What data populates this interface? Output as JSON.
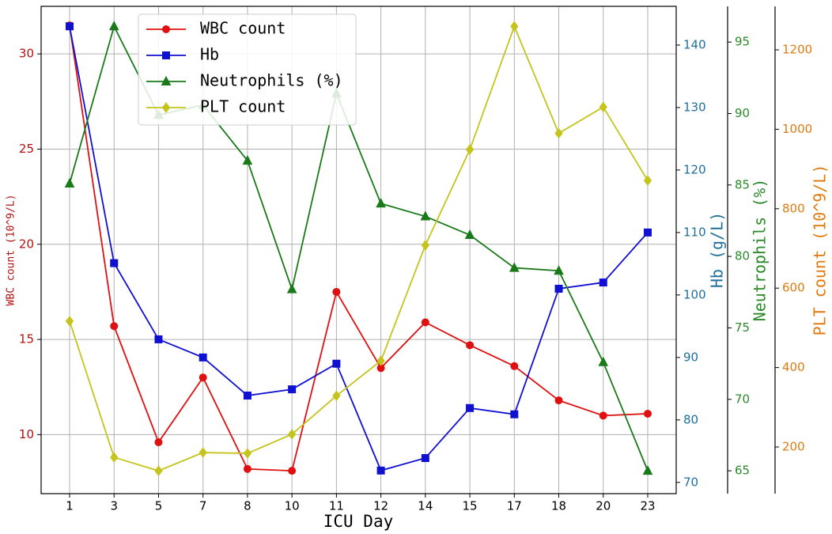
{
  "chart_data": {
    "type": "line",
    "categories": [
      "1",
      "3",
      "5",
      "7",
      "8",
      "10",
      "11",
      "12",
      "14",
      "15",
      "17",
      "18",
      "20",
      "23"
    ],
    "xlabel": "ICU Day",
    "ylabel": "WBC count (10^9/L)",
    "y2label": "Hb (g/L)",
    "y3label": "Neutrophils (%)",
    "y4label": "PLT count (10^9/L)",
    "ylim": [
      6.9,
      32.5
    ],
    "yticks": [
      10,
      15,
      20,
      25,
      30
    ],
    "y2lim": [
      68.2,
      146.2
    ],
    "y2ticks": [
      70,
      80,
      90,
      100,
      110,
      120,
      130,
      140
    ],
    "y3lim": [
      63.4,
      97.5
    ],
    "y3ticks": [
      65,
      70,
      75,
      80,
      85,
      90,
      95
    ],
    "y4lim": [
      82.5,
      1309.6
    ],
    "y4ticks": [
      200,
      400,
      600,
      800,
      1000,
      1200
    ],
    "grid": true,
    "legend": "upper left",
    "series": [
      {
        "name": "WBC count",
        "color": "#e01010",
        "marker": "circle",
        "axis": "y",
        "values": [
          31.5,
          15.7,
          9.6,
          13.0,
          8.2,
          8.1,
          17.5,
          13.5,
          15.9,
          14.7,
          13.6,
          11.8,
          11.0,
          11.1
        ]
      },
      {
        "name": "Hb",
        "color": "#1010d0",
        "marker": "square",
        "axis": "y2",
        "values": [
          143.0,
          105.1,
          92.9,
          90.0,
          83.9,
          84.9,
          89.0,
          71.9,
          73.9,
          81.9,
          80.9,
          101.0,
          102.0,
          110.0
        ]
      },
      {
        "name": "Neutrophils (%)",
        "color": "#1a7a1a",
        "marker": "triangle",
        "axis": "y3",
        "values": [
          85.1,
          96.1,
          89.9,
          90.6,
          86.7,
          77.7,
          91.4,
          83.7,
          82.8,
          81.5,
          79.2,
          79.0,
          72.6,
          65.0
        ]
      },
      {
        "name": "PLT count",
        "color": "#c4c41c",
        "marker": "diamond",
        "axis": "y4",
        "values": [
          517,
          174,
          140,
          186,
          184,
          232,
          329,
          417,
          708,
          949,
          1259,
          990,
          1056,
          871
        ]
      }
    ]
  }
}
